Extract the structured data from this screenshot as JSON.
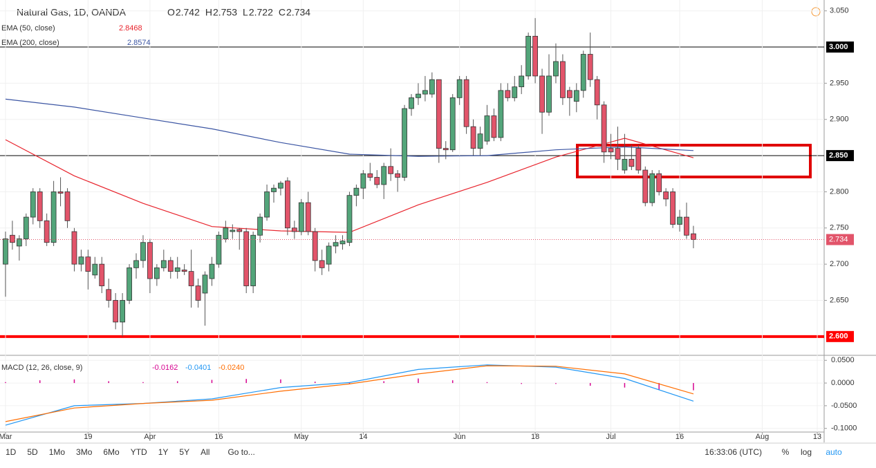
{
  "chart_data": {
    "type": "candlestick",
    "title": "Natural Gas, 1D, OANDA",
    "ohlc_legend": [
      {
        "label": "O",
        "value": "2.742"
      },
      {
        "label": "H",
        "value": "2.753"
      },
      {
        "label": "L",
        "value": "2.722"
      },
      {
        "label": "C",
        "value": "2.734"
      }
    ],
    "up_color": "#53a57a",
    "down_color": "#e2546a",
    "ylim": [
      2.575,
      3.065
    ],
    "yticks": [
      {
        "value": 2.65,
        "label": "2.650"
      },
      {
        "value": 2.7,
        "label": "2.700"
      },
      {
        "value": 2.75,
        "label": "2.750"
      },
      {
        "value": 2.8,
        "label": "2.800"
      },
      {
        "value": 2.9,
        "label": "2.900"
      },
      {
        "value": 2.95,
        "label": "2.950"
      },
      {
        "value": 3.05,
        "label": "3.050"
      }
    ],
    "levels": [
      {
        "value": 3.0,
        "label": "3.000",
        "color": "#000000",
        "width": 1
      },
      {
        "value": 2.85,
        "label": "2.850",
        "color": "#000000",
        "width": 1
      },
      {
        "value": 2.6,
        "label": "2.600",
        "color": "#ff0000",
        "width": 4
      }
    ],
    "last_price": {
      "value": 2.734,
      "label": "2.734",
      "color": "#e2546a"
    },
    "xlim": [
      -0.8,
      119
    ],
    "xticks": [
      {
        "value": 0,
        "label": "Mar"
      },
      {
        "value": 12,
        "label": "19"
      },
      {
        "value": 21,
        "label": "Apr"
      },
      {
        "value": 31,
        "label": "16"
      },
      {
        "value": 43,
        "label": "May"
      },
      {
        "value": 52,
        "label": "14"
      },
      {
        "value": 66,
        "label": "Jun"
      },
      {
        "value": 77,
        "label": "18"
      },
      {
        "value": 88,
        "label": "Jul"
      },
      {
        "value": 98,
        "label": "16"
      },
      {
        "value": 110,
        "label": "Aug"
      },
      {
        "value": 118,
        "label": "13"
      }
    ],
    "candles": [
      [
        2.7,
        2.745,
        2.655,
        2.735
      ],
      [
        2.74,
        2.76,
        2.72,
        2.73
      ],
      [
        2.725,
        2.74,
        2.705,
        2.735
      ],
      [
        2.735,
        2.77,
        2.725,
        2.765
      ],
      [
        2.765,
        2.805,
        2.755,
        2.8
      ],
      [
        2.8,
        2.805,
        2.75,
        2.76
      ],
      [
        2.76,
        2.77,
        2.725,
        2.73
      ],
      [
        2.73,
        2.815,
        2.725,
        2.8
      ],
      [
        2.8,
        2.82,
        2.78,
        2.798
      ],
      [
        2.8,
        2.805,
        2.75,
        2.76
      ],
      [
        2.745,
        2.75,
        2.69,
        2.7
      ],
      [
        2.7,
        2.72,
        2.69,
        2.71
      ],
      [
        2.71,
        2.72,
        2.665,
        2.69
      ],
      [
        2.685,
        2.71,
        2.68,
        2.7
      ],
      [
        2.7,
        2.71,
        2.66,
        2.67
      ],
      [
        2.665,
        2.68,
        2.64,
        2.65
      ],
      [
        2.65,
        2.66,
        2.61,
        2.62
      ],
      [
        2.62,
        2.66,
        2.6,
        2.65
      ],
      [
        2.65,
        2.7,
        2.645,
        2.695
      ],
      [
        2.695,
        2.715,
        2.68,
        2.705
      ],
      [
        2.705,
        2.74,
        2.695,
        2.73
      ],
      [
        2.73,
        2.735,
        2.66,
        2.68
      ],
      [
        2.68,
        2.7,
        2.67,
        2.695
      ],
      [
        2.695,
        2.72,
        2.69,
        2.705
      ],
      [
        2.705,
        2.71,
        2.68,
        2.69
      ],
      [
        2.69,
        2.71,
        2.68,
        2.695
      ],
      [
        2.692,
        2.7,
        2.685,
        2.69
      ],
      [
        2.69,
        2.72,
        2.64,
        2.67
      ],
      [
        2.67,
        2.68,
        2.64,
        2.65
      ],
      [
        2.66,
        2.69,
        2.615,
        2.685
      ],
      [
        2.68,
        2.71,
        2.67,
        2.7
      ],
      [
        2.7,
        2.745,
        2.695,
        2.74
      ],
      [
        2.735,
        2.76,
        2.73,
        2.75
      ],
      [
        2.745,
        2.755,
        2.735,
        2.747
      ],
      [
        2.748,
        2.75,
        2.72,
        2.745
      ],
      [
        2.745,
        2.75,
        2.66,
        2.67
      ],
      [
        2.67,
        2.745,
        2.66,
        2.74
      ],
      [
        2.74,
        2.77,
        2.73,
        2.765
      ],
      [
        2.765,
        2.81,
        2.76,
        2.8
      ],
      [
        2.8,
        2.81,
        2.785,
        2.805
      ],
      [
        2.805,
        2.815,
        2.795,
        2.812
      ],
      [
        2.815,
        2.82,
        2.74,
        2.75
      ],
      [
        2.75,
        2.76,
        2.735,
        2.745
      ],
      [
        2.745,
        2.79,
        2.74,
        2.785
      ],
      [
        2.785,
        2.8,
        2.74,
        2.745
      ],
      [
        2.745,
        2.75,
        2.69,
        2.705
      ],
      [
        2.705,
        2.72,
        2.685,
        2.695
      ],
      [
        2.7,
        2.73,
        2.69,
        2.725
      ],
      [
        2.725,
        2.74,
        2.715,
        2.73
      ],
      [
        2.728,
        2.74,
        2.72,
        2.732
      ],
      [
        2.73,
        2.8,
        2.725,
        2.795
      ],
      [
        2.795,
        2.81,
        2.78,
        2.805
      ],
      [
        2.805,
        2.83,
        2.79,
        2.825
      ],
      [
        2.825,
        2.84,
        2.815,
        2.82
      ],
      [
        2.82,
        2.83,
        2.805,
        2.81
      ],
      [
        2.81,
        2.84,
        2.79,
        2.835
      ],
      [
        2.835,
        2.86,
        2.815,
        2.825
      ],
      [
        2.825,
        2.83,
        2.8,
        2.82
      ],
      [
        2.82,
        2.92,
        2.815,
        2.915
      ],
      [
        2.915,
        2.935,
        2.905,
        2.93
      ],
      [
        2.93,
        2.95,
        2.92,
        2.935
      ],
      [
        2.935,
        2.96,
        2.925,
        2.94
      ],
      [
        2.935,
        2.965,
        2.93,
        2.955
      ],
      [
        2.955,
        2.955,
        2.84,
        2.86
      ],
      [
        2.86,
        2.87,
        2.845,
        2.858
      ],
      [
        2.858,
        2.935,
        2.855,
        2.93
      ],
      [
        2.93,
        2.96,
        2.92,
        2.955
      ],
      [
        2.955,
        2.96,
        2.88,
        2.89
      ],
      [
        2.89,
        2.9,
        2.85,
        2.86
      ],
      [
        2.86,
        2.89,
        2.85,
        2.88
      ],
      [
        2.87,
        2.92,
        2.865,
        2.905
      ],
      [
        2.905,
        2.915,
        2.87,
        2.875
      ],
      [
        2.875,
        2.95,
        2.87,
        2.94
      ],
      [
        2.94,
        2.95,
        2.925,
        2.93
      ],
      [
        2.93,
        2.96,
        2.925,
        2.945
      ],
      [
        2.945,
        2.975,
        2.935,
        2.96
      ],
      [
        2.96,
        3.02,
        2.955,
        3.015
      ],
      [
        3.015,
        3.04,
        2.95,
        2.96
      ],
      [
        2.96,
        2.97,
        2.88,
        2.91
      ],
      [
        2.91,
        2.99,
        2.905,
        2.96
      ],
      [
        2.96,
        3.005,
        2.95,
        2.98
      ],
      [
        2.98,
        2.99,
        2.92,
        2.93
      ],
      [
        2.94,
        2.945,
        2.905,
        2.93
      ],
      [
        2.925,
        2.95,
        2.91,
        2.94
      ],
      [
        2.94,
        2.995,
        2.93,
        2.99
      ],
      [
        2.99,
        3.02,
        2.945,
        2.955
      ],
      [
        2.955,
        2.96,
        2.9,
        2.92
      ],
      [
        2.92,
        2.925,
        2.84,
        2.855
      ],
      [
        2.86,
        2.88,
        2.845,
        2.855
      ],
      [
        2.86,
        2.89,
        2.83,
        2.845
      ],
      [
        2.83,
        2.88,
        2.825,
        2.845
      ],
      [
        2.845,
        2.865,
        2.83,
        2.835
      ],
      [
        2.86,
        2.865,
        2.825,
        2.83
      ],
      [
        2.83,
        2.835,
        2.78,
        2.785
      ],
      [
        2.785,
        2.83,
        2.78,
        2.825
      ],
      [
        2.825,
        2.83,
        2.795,
        2.8
      ],
      [
        2.8,
        2.805,
        2.78,
        2.79
      ],
      [
        2.8,
        2.805,
        2.75,
        2.755
      ],
      [
        2.755,
        2.775,
        2.745,
        2.765
      ],
      [
        2.765,
        2.785,
        2.735,
        2.74
      ],
      [
        2.742,
        2.753,
        2.722,
        2.734
      ]
    ],
    "overlays": [
      {
        "name": "EMA (50, close)",
        "last": "2.8468",
        "color": "#e8232c",
        "x": [
          0,
          10,
          20,
          30,
          40,
          50,
          60,
          70,
          80,
          90,
          100
        ],
        "values": [
          2.872,
          2.822,
          2.784,
          2.752,
          2.746,
          2.744,
          2.782,
          2.813,
          2.848,
          2.874,
          2.847
        ]
      },
      {
        "name": "EMA (200, close)",
        "last": "2.8574",
        "color": "#3b55a3",
        "x": [
          0,
          10,
          20,
          30,
          40,
          50,
          60,
          70,
          80,
          90,
          100
        ],
        "values": [
          2.928,
          2.917,
          2.902,
          2.887,
          2.868,
          2.852,
          2.849,
          2.85,
          2.858,
          2.862,
          2.857
        ]
      }
    ],
    "macd": {
      "name": "MACD (12, 26, close, 9)",
      "legend": [
        {
          "value": "-0.0162",
          "color": "#d6008f"
        },
        {
          "value": "-0.0401",
          "color": "#2196f3"
        },
        {
          "value": "-0.0240",
          "color": "#ff6d00"
        }
      ],
      "ylim": [
        -0.105,
        0.058
      ],
      "yticks": [
        {
          "value": 0.05,
          "label": "0.0500"
        },
        {
          "value": 0,
          "label": "0.0000"
        },
        {
          "value": -0.05,
          "label": "-0.0500"
        },
        {
          "value": -0.1,
          "label": "-0.1000"
        }
      ],
      "x": [
        0,
        10,
        20,
        30,
        40,
        50,
        60,
        70,
        80,
        90,
        100
      ],
      "series": [
        {
          "name": "MACD",
          "color": "#2196f3",
          "values": [
            -0.093,
            -0.05,
            -0.045,
            -0.035,
            -0.01,
            0.001,
            0.03,
            0.04,
            0.035,
            0.01,
            -0.04
          ]
        },
        {
          "name": "Signal",
          "color": "#ff6d00",
          "values": [
            -0.085,
            -0.055,
            -0.045,
            -0.038,
            -0.018,
            -0.002,
            0.02,
            0.038,
            0.037,
            0.02,
            -0.024
          ]
        }
      ],
      "hist_x": [
        0,
        5,
        10,
        15,
        20,
        25,
        30,
        35,
        40,
        45,
        50,
        55,
        60,
        65,
        70,
        75,
        80,
        85,
        90,
        95,
        100
      ],
      "hist_color": "#d6008f",
      "hist": [
        0.002,
        0.006,
        0.008,
        0.004,
        0.002,
        0.004,
        0.007,
        0.009,
        0.008,
        0.003,
        -0.002,
        0.004,
        0.01,
        0.006,
        0.002,
        -0.002,
        -0.002,
        -0.006,
        -0.01,
        -0.015,
        -0.016
      ]
    },
    "toolbar": [
      "1D",
      "5D",
      "1Mo",
      "3Mo",
      "6Mo",
      "YTD",
      "1Y",
      "5Y",
      "All"
    ],
    "goto": "Go to...",
    "clock": "16:33:06 (UTC)",
    "options": [
      "%",
      "log",
      "auto"
    ]
  }
}
